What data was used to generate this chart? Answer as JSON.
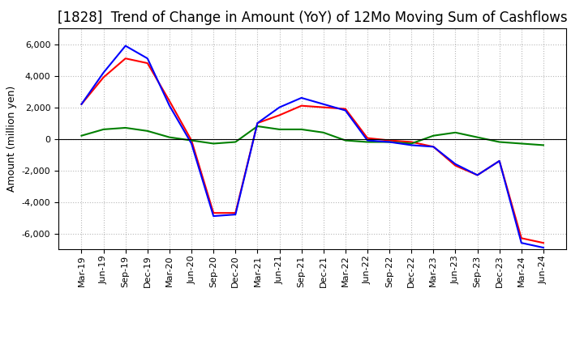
{
  "title": "[1828]  Trend of Change in Amount (YoY) of 12Mo Moving Sum of Cashflows",
  "ylabel": "Amount (million yen)",
  "ylim": [
    -7000,
    7000
  ],
  "yticks": [
    -6000,
    -4000,
    -2000,
    0,
    2000,
    4000,
    6000
  ],
  "x_labels": [
    "Mar-19",
    "Jun-19",
    "Sep-19",
    "Dec-19",
    "Mar-20",
    "Jun-20",
    "Sep-20",
    "Dec-20",
    "Mar-21",
    "Jun-21",
    "Sep-21",
    "Dec-21",
    "Mar-22",
    "Jun-22",
    "Sep-22",
    "Dec-22",
    "Mar-23",
    "Jun-23",
    "Sep-23",
    "Dec-23",
    "Mar-24",
    "Jun-24"
  ],
  "operating": [
    2200,
    3900,
    5100,
    4800,
    2400,
    -100,
    -4700,
    -4700,
    1000,
    1500,
    2100,
    2000,
    1900,
    50,
    -100,
    -200,
    -500,
    -1700,
    -2300,
    -1400,
    -6300,
    -6600
  ],
  "investing": [
    200,
    600,
    700,
    500,
    100,
    -100,
    -300,
    -200,
    800,
    600,
    600,
    400,
    -100,
    -200,
    -200,
    -300,
    200,
    400,
    100,
    -200,
    -300,
    -400
  ],
  "free": [
    2200,
    4200,
    5900,
    5100,
    2100,
    -300,
    -4900,
    -4800,
    1000,
    2000,
    2600,
    2200,
    1800,
    -100,
    -200,
    -400,
    -500,
    -1600,
    -2300,
    -1400,
    -6600,
    -6900
  ],
  "operating_color": "#FF0000",
  "investing_color": "#008000",
  "free_color": "#0000FF",
  "title_fontsize": 12,
  "axis_label_fontsize": 9,
  "tick_fontsize": 8,
  "background_color": "#FFFFFF",
  "grid_color": "#999999"
}
